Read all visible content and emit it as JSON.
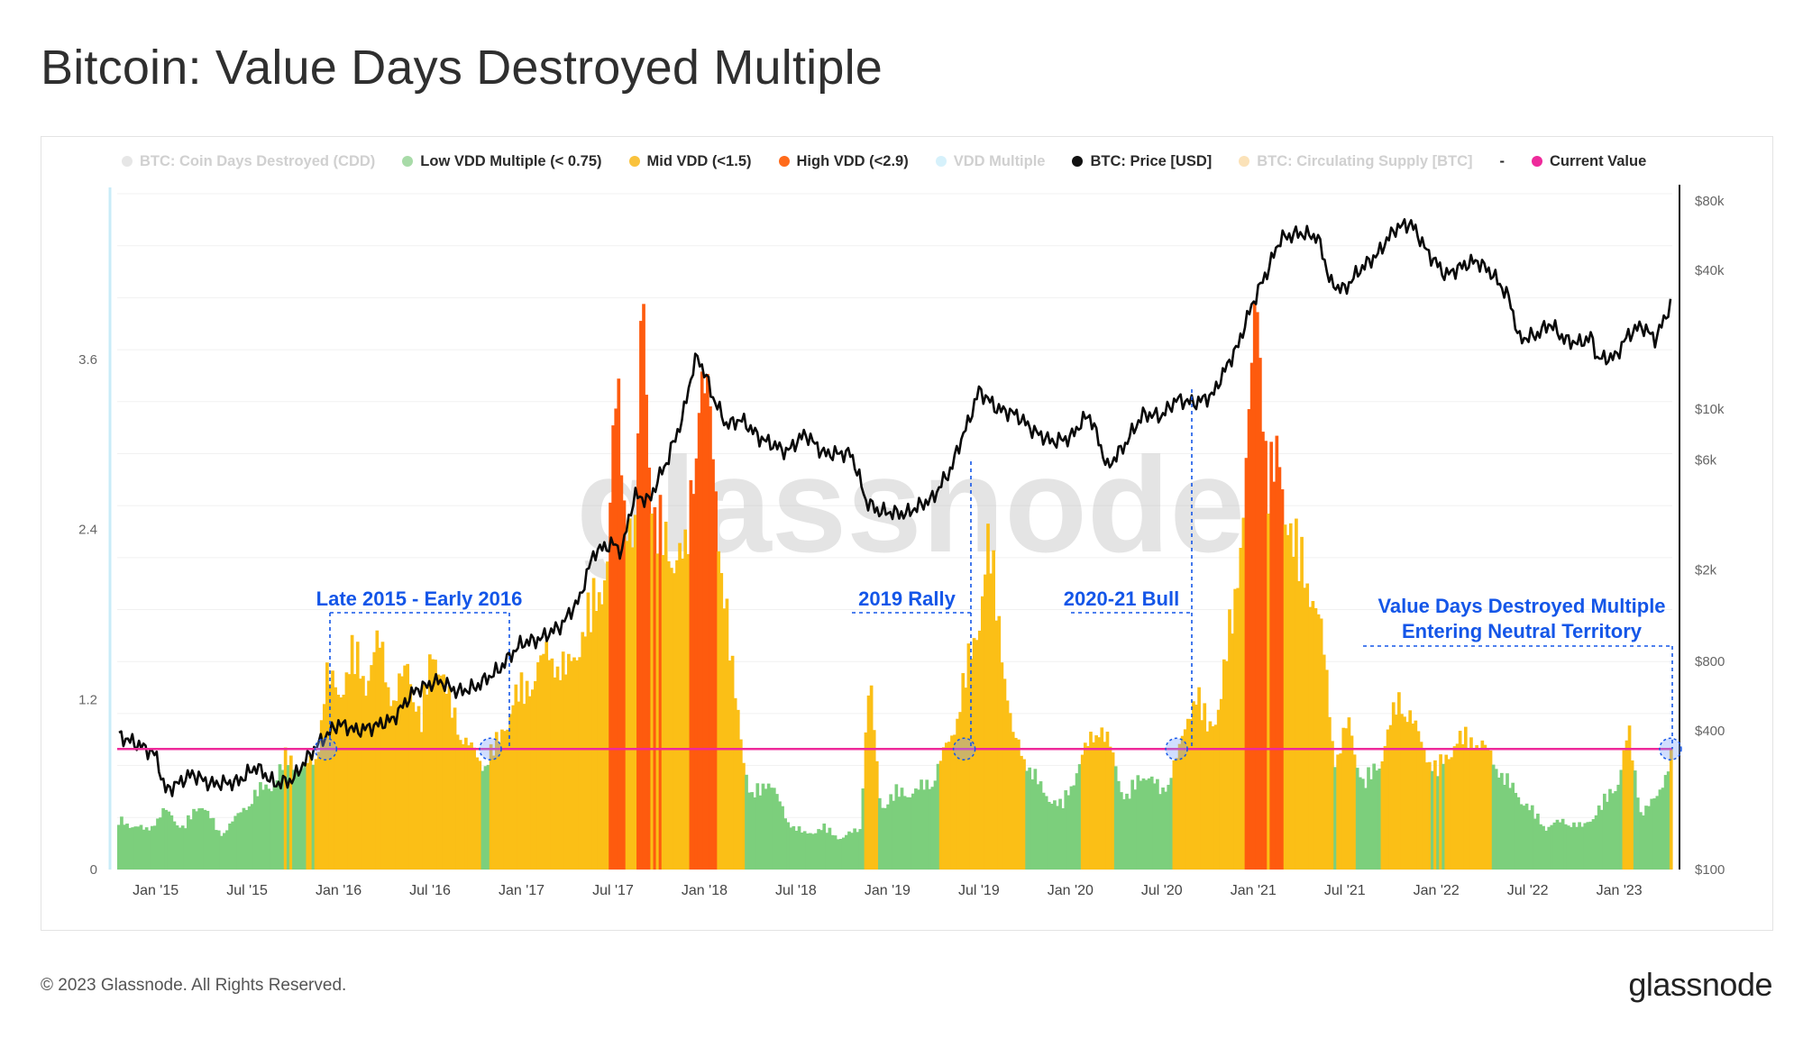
{
  "page": {
    "title": "Bitcoin: Value Days Destroyed Multiple",
    "copyright": "© 2023 Glassnode. All Rights Reserved.",
    "logo": "glassnode",
    "watermark": "glassnode"
  },
  "legend": [
    {
      "label": "BTC: Coin Days Destroyed (CDD)",
      "color": "#e6e6e6",
      "faded": true
    },
    {
      "label": "Low VDD Multiple (< 0.75)",
      "color": "#a8dba8",
      "faded": false
    },
    {
      "label": "Mid VDD (<1.5)",
      "color": "#f9c23c",
      "faded": false
    },
    {
      "label": "High VDD (<2.9)",
      "color": "#ff6a1a",
      "faded": false
    },
    {
      "label": "VDD Multiple",
      "color": "#d6f1fb",
      "faded": true
    },
    {
      "label": "BTC: Price [USD]",
      "color": "#111111",
      "faded": false
    },
    {
      "label": "BTC: Circulating Supply [BTC]",
      "color": "#fbe2b8",
      "faded": true
    },
    {
      "label": "-",
      "color": null,
      "faded": false,
      "dash": true
    },
    {
      "label": "Current Value",
      "color": "#ee2a9b",
      "faded": false
    }
  ],
  "chart_data": {
    "type": "bar",
    "x_ticks": [
      "Jan '15",
      "Jul '15",
      "Jan '16",
      "Jul '16",
      "Jan '17",
      "Jul '17",
      "Jan '18",
      "Jul '18",
      "Jan '19",
      "Jul '19",
      "Jan '20",
      "Jul '20",
      "Jan '21",
      "Jul '21",
      "Jan '22",
      "Jul '22",
      "Jan '23"
    ],
    "y_left": {
      "ticks": [
        "0",
        "1.2",
        "2.4",
        "3.6"
      ],
      "range": [
        0,
        4.8
      ]
    },
    "y_right": {
      "scale": "log",
      "ticks": [
        "$100",
        "$400",
        "$800",
        "$2k",
        "$6k",
        "$10k",
        "$40k",
        "$80k"
      ],
      "range": [
        100,
        90000
      ]
    },
    "current_value_line": 0.85,
    "colors": {
      "low": "#7ccf7c",
      "mid": "#fbbf16",
      "high": "#fe5b0e",
      "price": "#0a0a0a",
      "current": "#ee2a9b",
      "annotation": "#1456e8"
    },
    "vdd_multiple": [
      {
        "t": 2014.8,
        "v": 0.35
      },
      {
        "t": 2014.95,
        "v": 0.28
      },
      {
        "t": 2015.05,
        "v": 0.42
      },
      {
        "t": 2015.15,
        "v": 0.3
      },
      {
        "t": 2015.25,
        "v": 0.48
      },
      {
        "t": 2015.35,
        "v": 0.25
      },
      {
        "t": 2015.45,
        "v": 0.38
      },
      {
        "t": 2015.55,
        "v": 0.55
      },
      {
        "t": 2015.65,
        "v": 0.62
      },
      {
        "t": 2015.72,
        "v": 0.82
      },
      {
        "t": 2015.8,
        "v": 0.7
      },
      {
        "t": 2015.88,
        "v": 0.8
      },
      {
        "t": 2015.93,
        "v": 1.38
      },
      {
        "t": 2016.0,
        "v": 1.25
      },
      {
        "t": 2016.08,
        "v": 1.55
      },
      {
        "t": 2016.15,
        "v": 1.35
      },
      {
        "t": 2016.22,
        "v": 1.62
      },
      {
        "t": 2016.3,
        "v": 1.2
      },
      {
        "t": 2016.38,
        "v": 1.45
      },
      {
        "t": 2016.45,
        "v": 1.05
      },
      {
        "t": 2016.52,
        "v": 1.62
      },
      {
        "t": 2016.6,
        "v": 1.2
      },
      {
        "t": 2016.7,
        "v": 0.9
      },
      {
        "t": 2016.78,
        "v": 0.75
      },
      {
        "t": 2016.88,
        "v": 0.92
      },
      {
        "t": 2016.95,
        "v": 1.2
      },
      {
        "t": 2017.05,
        "v": 1.35
      },
      {
        "t": 2017.15,
        "v": 1.55
      },
      {
        "t": 2017.25,
        "v": 1.4
      },
      {
        "t": 2017.35,
        "v": 1.75
      },
      {
        "t": 2017.42,
        "v": 2.0
      },
      {
        "t": 2017.47,
        "v": 2.2
      },
      {
        "t": 2017.52,
        "v": 3.45
      },
      {
        "t": 2017.57,
        "v": 2.6
      },
      {
        "t": 2017.62,
        "v": 2.3
      },
      {
        "t": 2017.66,
        "v": 4.15
      },
      {
        "t": 2017.72,
        "v": 2.5
      },
      {
        "t": 2017.8,
        "v": 2.3
      },
      {
        "t": 2017.9,
        "v": 2.2
      },
      {
        "t": 2017.97,
        "v": 3.5
      },
      {
        "t": 2018.02,
        "v": 3.3
      },
      {
        "t": 2018.08,
        "v": 2.4
      },
      {
        "t": 2018.15,
        "v": 1.4
      },
      {
        "t": 2018.25,
        "v": 0.5
      },
      {
        "t": 2018.35,
        "v": 0.65
      },
      {
        "t": 2018.45,
        "v": 0.35
      },
      {
        "t": 2018.55,
        "v": 0.25
      },
      {
        "t": 2018.65,
        "v": 0.3
      },
      {
        "t": 2018.75,
        "v": 0.22
      },
      {
        "t": 2018.85,
        "v": 0.3
      },
      {
        "t": 2018.9,
        "v": 1.38
      },
      {
        "t": 2018.96,
        "v": 0.45
      },
      {
        "t": 2019.05,
        "v": 0.55
      },
      {
        "t": 2019.15,
        "v": 0.55
      },
      {
        "t": 2019.25,
        "v": 0.65
      },
      {
        "t": 2019.35,
        "v": 0.95
      },
      {
        "t": 2019.42,
        "v": 1.35
      },
      {
        "t": 2019.48,
        "v": 1.65
      },
      {
        "t": 2019.55,
        "v": 2.3
      },
      {
        "t": 2019.6,
        "v": 1.9
      },
      {
        "t": 2019.68,
        "v": 0.95
      },
      {
        "t": 2019.75,
        "v": 0.8
      },
      {
        "t": 2019.85,
        "v": 0.55
      },
      {
        "t": 2019.95,
        "v": 0.45
      },
      {
        "t": 2020.05,
        "v": 0.75
      },
      {
        "t": 2020.15,
        "v": 1.05
      },
      {
        "t": 2020.22,
        "v": 0.85
      },
      {
        "t": 2020.3,
        "v": 0.5
      },
      {
        "t": 2020.4,
        "v": 0.7
      },
      {
        "t": 2020.5,
        "v": 0.55
      },
      {
        "t": 2020.6,
        "v": 0.85
      },
      {
        "t": 2020.68,
        "v": 1.3
      },
      {
        "t": 2020.75,
        "v": 1.0
      },
      {
        "t": 2020.82,
        "v": 1.2
      },
      {
        "t": 2020.9,
        "v": 2.0
      },
      {
        "t": 2020.96,
        "v": 2.8
      },
      {
        "t": 2021.02,
        "v": 4.15
      },
      {
        "t": 2021.08,
        "v": 2.75
      },
      {
        "t": 2021.14,
        "v": 2.9
      },
      {
        "t": 2021.22,
        "v": 2.3
      },
      {
        "t": 2021.3,
        "v": 2.1
      },
      {
        "t": 2021.38,
        "v": 1.6
      },
      {
        "t": 2021.45,
        "v": 0.75
      },
      {
        "t": 2021.52,
        "v": 1.05
      },
      {
        "t": 2021.6,
        "v": 0.6
      },
      {
        "t": 2021.7,
        "v": 0.8
      },
      {
        "t": 2021.8,
        "v": 1.25
      },
      {
        "t": 2021.9,
        "v": 0.95
      },
      {
        "t": 2022.0,
        "v": 0.7
      },
      {
        "t": 2022.1,
        "v": 0.9
      },
      {
        "t": 2022.2,
        "v": 0.95
      },
      {
        "t": 2022.3,
        "v": 0.8
      },
      {
        "t": 2022.4,
        "v": 0.6
      },
      {
        "t": 2022.5,
        "v": 0.45
      },
      {
        "t": 2022.6,
        "v": 0.3
      },
      {
        "t": 2022.7,
        "v": 0.35
      },
      {
        "t": 2022.8,
        "v": 0.3
      },
      {
        "t": 2022.9,
        "v": 0.45
      },
      {
        "t": 2023.0,
        "v": 0.65
      },
      {
        "t": 2023.05,
        "v": 0.98
      },
      {
        "t": 2023.12,
        "v": 0.4
      },
      {
        "t": 2023.2,
        "v": 0.5
      },
      {
        "t": 2023.28,
        "v": 0.8
      }
    ],
    "price_usd": [
      {
        "t": 2014.8,
        "v": 380
      },
      {
        "t": 2014.9,
        "v": 350
      },
      {
        "t": 2015.0,
        "v": 315
      },
      {
        "t": 2015.05,
        "v": 220
      },
      {
        "t": 2015.1,
        "v": 230
      },
      {
        "t": 2015.2,
        "v": 260
      },
      {
        "t": 2015.3,
        "v": 235
      },
      {
        "t": 2015.45,
        "v": 240
      },
      {
        "t": 2015.55,
        "v": 280
      },
      {
        "t": 2015.65,
        "v": 235
      },
      {
        "t": 2015.75,
        "v": 245
      },
      {
        "t": 2015.85,
        "v": 320
      },
      {
        "t": 2015.93,
        "v": 380
      },
      {
        "t": 2016.0,
        "v": 430
      },
      {
        "t": 2016.1,
        "v": 400
      },
      {
        "t": 2016.2,
        "v": 420
      },
      {
        "t": 2016.3,
        "v": 450
      },
      {
        "t": 2016.42,
        "v": 600
      },
      {
        "t": 2016.55,
        "v": 660
      },
      {
        "t": 2016.65,
        "v": 590
      },
      {
        "t": 2016.75,
        "v": 620
      },
      {
        "t": 2016.88,
        "v": 740
      },
      {
        "t": 2017.0,
        "v": 960
      },
      {
        "t": 2017.1,
        "v": 1000
      },
      {
        "t": 2017.22,
        "v": 1150
      },
      {
        "t": 2017.32,
        "v": 1500
      },
      {
        "t": 2017.4,
        "v": 2400
      },
      {
        "t": 2017.5,
        "v": 2600
      },
      {
        "t": 2017.55,
        "v": 2400
      },
      {
        "t": 2017.62,
        "v": 4200
      },
      {
        "t": 2017.7,
        "v": 4000
      },
      {
        "t": 2017.8,
        "v": 6000
      },
      {
        "t": 2017.88,
        "v": 9000
      },
      {
        "t": 2017.96,
        "v": 17000
      },
      {
        "t": 2018.05,
        "v": 11000
      },
      {
        "t": 2018.12,
        "v": 8500
      },
      {
        "t": 2018.2,
        "v": 9000
      },
      {
        "t": 2018.3,
        "v": 7500
      },
      {
        "t": 2018.45,
        "v": 6500
      },
      {
        "t": 2018.55,
        "v": 7800
      },
      {
        "t": 2018.65,
        "v": 6400
      },
      {
        "t": 2018.8,
        "v": 6400
      },
      {
        "t": 2018.88,
        "v": 4000
      },
      {
        "t": 2018.95,
        "v": 3600
      },
      {
        "t": 2019.1,
        "v": 3500
      },
      {
        "t": 2019.25,
        "v": 4100
      },
      {
        "t": 2019.35,
        "v": 5500
      },
      {
        "t": 2019.45,
        "v": 9000
      },
      {
        "t": 2019.5,
        "v": 12000
      },
      {
        "t": 2019.6,
        "v": 10000
      },
      {
        "t": 2019.7,
        "v": 9500
      },
      {
        "t": 2019.8,
        "v": 8000
      },
      {
        "t": 2019.9,
        "v": 7200
      },
      {
        "t": 2020.0,
        "v": 7500
      },
      {
        "t": 2020.1,
        "v": 9500
      },
      {
        "t": 2020.2,
        "v": 5500
      },
      {
        "t": 2020.3,
        "v": 7000
      },
      {
        "t": 2020.4,
        "v": 9500
      },
      {
        "t": 2020.5,
        "v": 9300
      },
      {
        "t": 2020.58,
        "v": 11000
      },
      {
        "t": 2020.68,
        "v": 10600
      },
      {
        "t": 2020.78,
        "v": 11500
      },
      {
        "t": 2020.85,
        "v": 15000
      },
      {
        "t": 2020.92,
        "v": 19000
      },
      {
        "t": 2021.0,
        "v": 29000
      },
      {
        "t": 2021.08,
        "v": 40000
      },
      {
        "t": 2021.15,
        "v": 55000
      },
      {
        "t": 2021.25,
        "v": 58000
      },
      {
        "t": 2021.35,
        "v": 56000
      },
      {
        "t": 2021.42,
        "v": 35000
      },
      {
        "t": 2021.5,
        "v": 33000
      },
      {
        "t": 2021.58,
        "v": 40000
      },
      {
        "t": 2021.68,
        "v": 47000
      },
      {
        "t": 2021.78,
        "v": 61000
      },
      {
        "t": 2021.86,
        "v": 64000
      },
      {
        "t": 2021.95,
        "v": 48000
      },
      {
        "t": 2022.05,
        "v": 38000
      },
      {
        "t": 2022.15,
        "v": 42000
      },
      {
        "t": 2022.22,
        "v": 44000
      },
      {
        "t": 2022.3,
        "v": 39000
      },
      {
        "t": 2022.4,
        "v": 30000
      },
      {
        "t": 2022.45,
        "v": 20000
      },
      {
        "t": 2022.55,
        "v": 21000
      },
      {
        "t": 2022.62,
        "v": 23500
      },
      {
        "t": 2022.7,
        "v": 20000
      },
      {
        "t": 2022.78,
        "v": 19300
      },
      {
        "t": 2022.85,
        "v": 20500
      },
      {
        "t": 2022.88,
        "v": 16500
      },
      {
        "t": 2022.98,
        "v": 16800
      },
      {
        "t": 2023.05,
        "v": 21000
      },
      {
        "t": 2023.12,
        "v": 23000
      },
      {
        "t": 2023.2,
        "v": 20000
      },
      {
        "t": 2023.28,
        "v": 28000
      }
    ],
    "highlight_markers": [
      2015.93,
      2016.83,
      2019.42,
      2020.58,
      2023.28
    ]
  },
  "annotations": [
    {
      "text": "Late 2015 - Early 2016"
    },
    {
      "text": "2019 Rally"
    },
    {
      "text": "2020-21 Bull"
    },
    {
      "text": "Value Days Destroyed Multiple"
    },
    {
      "text": "Entering Neutral Territory"
    }
  ]
}
